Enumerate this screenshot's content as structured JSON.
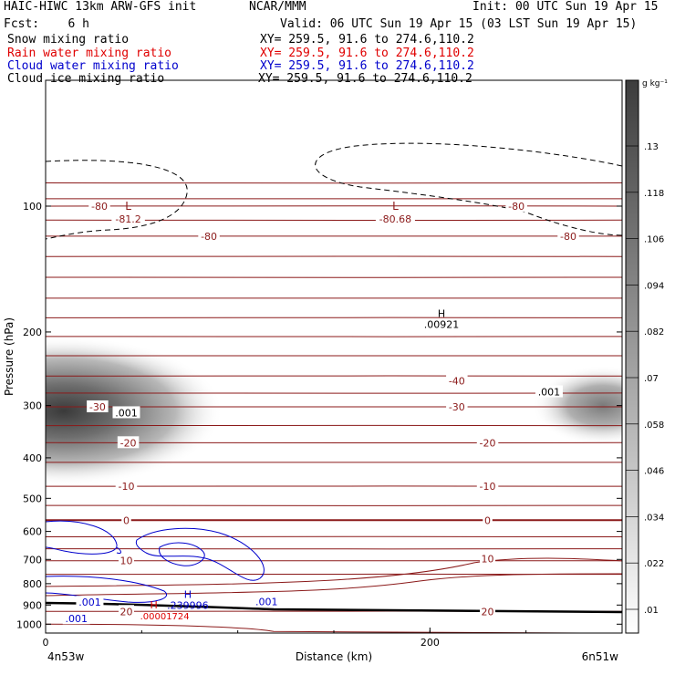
{
  "header": {
    "title_left": "HAIC-HIWC 13km ARW-GFS init",
    "org": "NCAR/MMM",
    "init": "Init: 00 UTC Sun 19 Apr 15",
    "fcst": "Fcst:    6 h",
    "valid": "Valid: 06 UTC Sun 19 Apr 15 (03 LST Sun 19 Apr 15)",
    "fields": [
      {
        "name": "Snow mixing ratio",
        "xy": "XY= 259.5, 91.6 to 274.6,110.2",
        "color": "#000000"
      },
      {
        "name": "Rain water mixing ratio",
        "xy": "XY= 259.5, 91.6 to 274.6,110.2",
        "color": "#e00000"
      },
      {
        "name": "Cloud water mixing ratio",
        "xy": "XY= 259.5, 91.6 to 274.6,110.2",
        "color": "#0000cc"
      },
      {
        "name": "Cloud ice mixing ratio",
        "xy": "XY= 259.5, 91.6 to 274.6,110.2",
        "color": "#000000"
      }
    ]
  },
  "colorbar": {
    "unit": "g kg⁻¹",
    "ticks": [
      ".01",
      ".022",
      ".034",
      ".046",
      ".058",
      ".07",
      ".082",
      ".094",
      ".106",
      ".118",
      ".13"
    ]
  },
  "chart_data": {
    "type": "contour",
    "xlabel": "Distance (km)",
    "ylabel": "Pressure (hPa)",
    "x_ticks": [
      0,
      200
    ],
    "xlim": [
      0,
      300
    ],
    "y_ticks": [
      100,
      200,
      300,
      400,
      500,
      600,
      700,
      800,
      900,
      1000
    ],
    "ylim": [
      1050,
      50
    ],
    "y_scale": "log-pressure",
    "left_endpoint": "4n53w",
    "right_endpoint": "6n51w",
    "temperature_contours": {
      "color": "#8b1a1a",
      "interval": 5,
      "labels": [
        {
          "text": "-80",
          "x": 28,
          "p": 100
        },
        {
          "text": "-80",
          "x": 245,
          "p": 100
        },
        {
          "text": "-80",
          "x": 85,
          "p": 118
        },
        {
          "text": "-80",
          "x": 272,
          "p": 118
        },
        {
          "text": "-40",
          "x": 214,
          "p": 262
        },
        {
          "text": "-30",
          "x": 27,
          "p": 302
        },
        {
          "text": "-30",
          "x": 214,
          "p": 302
        },
        {
          "text": "-20",
          "x": 43,
          "p": 368
        },
        {
          "text": "-20",
          "x": 230,
          "p": 368
        },
        {
          "text": "-10",
          "x": 42,
          "p": 468
        },
        {
          "text": "-10",
          "x": 230,
          "p": 468
        },
        {
          "text": "0",
          "x": 42,
          "p": 564
        },
        {
          "text": "0",
          "x": 230,
          "p": 564
        },
        {
          "text": "10",
          "x": 42,
          "p": 705
        },
        {
          "text": "10",
          "x": 230,
          "p": 697
        },
        {
          "text": "20",
          "x": 42,
          "p": 932
        },
        {
          "text": "20",
          "x": 230,
          "p": 932
        }
      ],
      "extrema": [
        {
          "type": "L",
          "value": "-81.2",
          "x": 43,
          "p": 102
        },
        {
          "type": "L",
          "value": "-80.68",
          "x": 182,
          "p": 102
        }
      ]
    },
    "cloud_ice_contours": {
      "color": "#000000",
      "style": "dashed",
      "labels": [
        {
          "text": ".001",
          "x": 42,
          "p": 312
        },
        {
          "text": ".001",
          "x": 262,
          "p": 278
        }
      ],
      "extrema": [
        {
          "type": "H",
          "value": ".00921",
          "x": 206,
          "p": 188
        }
      ]
    },
    "cloud_water_contours": {
      "color": "#0000cc",
      "labels": [
        {
          "text": ".001",
          "x": 23,
          "p": 886
        },
        {
          "text": ".001",
          "x": 115,
          "p": 882
        },
        {
          "text": ".001",
          "x": 16,
          "p": 970
        }
      ],
      "extrema": [
        {
          "type": "H",
          "value": ".239996",
          "x": 74,
          "p": 910
        }
      ]
    },
    "rain_water_contours": {
      "color": "#e00000",
      "extrema": [
        {
          "type": "H",
          "value": ".00001724",
          "x": 62,
          "p": 935
        }
      ]
    },
    "snow_shading": {
      "levels": [
        0.01,
        0.022,
        0.034,
        0.046,
        0.058,
        0.07,
        0.082,
        0.094,
        0.106,
        0.118,
        0.13
      ],
      "regions": [
        {
          "x": 0,
          "p": 300,
          "max": 0.13
        },
        {
          "x": 290,
          "p": 300,
          "max": 0.106
        }
      ]
    }
  }
}
